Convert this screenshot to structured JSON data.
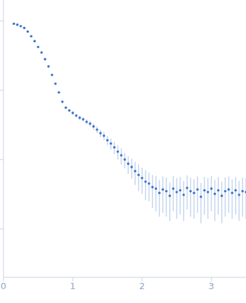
{
  "chart_data": {
    "type": "scatter",
    "log": "y",
    "grid": false,
    "tick_labels": "x",
    "marker": "circle",
    "color": "#3b73c8",
    "x": [
      0.15,
      0.2,
      0.25,
      0.3,
      0.35,
      0.4,
      0.45,
      0.5,
      0.55,
      0.6,
      0.65,
      0.7,
      0.75,
      0.8,
      0.85,
      0.9,
      0.95,
      1.0,
      1.05,
      1.1,
      1.15,
      1.2,
      1.25,
      1.3,
      1.35,
      1.4,
      1.45,
      1.5,
      1.55,
      1.6,
      1.65,
      1.7,
      1.75,
      1.8,
      1.85,
      1.9,
      1.95,
      2.0,
      2.05,
      2.1,
      2.15,
      2.2,
      2.25,
      2.3,
      2.35,
      2.4,
      2.45,
      2.5,
      2.55,
      2.6,
      2.65,
      2.7,
      2.75,
      2.8,
      2.85,
      2.9,
      2.95,
      3.0,
      3.05,
      3.1,
      3.15,
      3.2,
      3.25,
      3.3,
      3.35,
      3.4,
      3.45,
      3.5
    ],
    "values": [
      91,
      88,
      84,
      79,
      70,
      60,
      51,
      42,
      35,
      28,
      22,
      16.6,
      12.4,
      9.3,
      6.8,
      5.6,
      5.1,
      4.7,
      4.3,
      4.0,
      3.8,
      3.5,
      3.3,
      3.0,
      2.7,
      2.4,
      2.2,
      1.9,
      1.7,
      1.5,
      1.3,
      1.15,
      1.0,
      0.87,
      0.78,
      0.68,
      0.6,
      0.54,
      0.48,
      0.45,
      0.4,
      0.38,
      0.33,
      0.37,
      0.35,
      0.3,
      0.38,
      0.34,
      0.36,
      0.31,
      0.39,
      0.35,
      0.33,
      0.37,
      0.29,
      0.36,
      0.34,
      0.38,
      0.32,
      0.36,
      0.3,
      0.35,
      0.37,
      0.33,
      0.36,
      0.31,
      0.35,
      0.34
    ],
    "errors": [
      1,
      1,
      1,
      1,
      0.8,
      0.7,
      0.6,
      0.5,
      0.4,
      0.3,
      0.3,
      0.2,
      0.2,
      0.15,
      0.15,
      0.15,
      0.2,
      0.25,
      0.25,
      0.25,
      0.25,
      0.3,
      0.3,
      0.3,
      0.3,
      0.3,
      0.3,
      0.3,
      0.3,
      0.3,
      0.3,
      0.3,
      0.25,
      0.25,
      0.25,
      0.25,
      0.25,
      0.22,
      0.22,
      0.2,
      0.2,
      0.2,
      0.18,
      0.2,
      0.2,
      0.17,
      0.2,
      0.2,
      0.2,
      0.18,
      0.2,
      0.2,
      0.19,
      0.2,
      0.17,
      0.2,
      0.2,
      0.2,
      0.19,
      0.2,
      0.18,
      0.2,
      0.2,
      0.19,
      0.2,
      0.18,
      0.2,
      0.2
    ],
    "xlim": [
      0,
      3.5
    ],
    "xticks": [
      0,
      1,
      2,
      3
    ],
    "ylim": [
      0.02,
      200
    ],
    "yticks": [
      0.1,
      1,
      10,
      100
    ]
  }
}
